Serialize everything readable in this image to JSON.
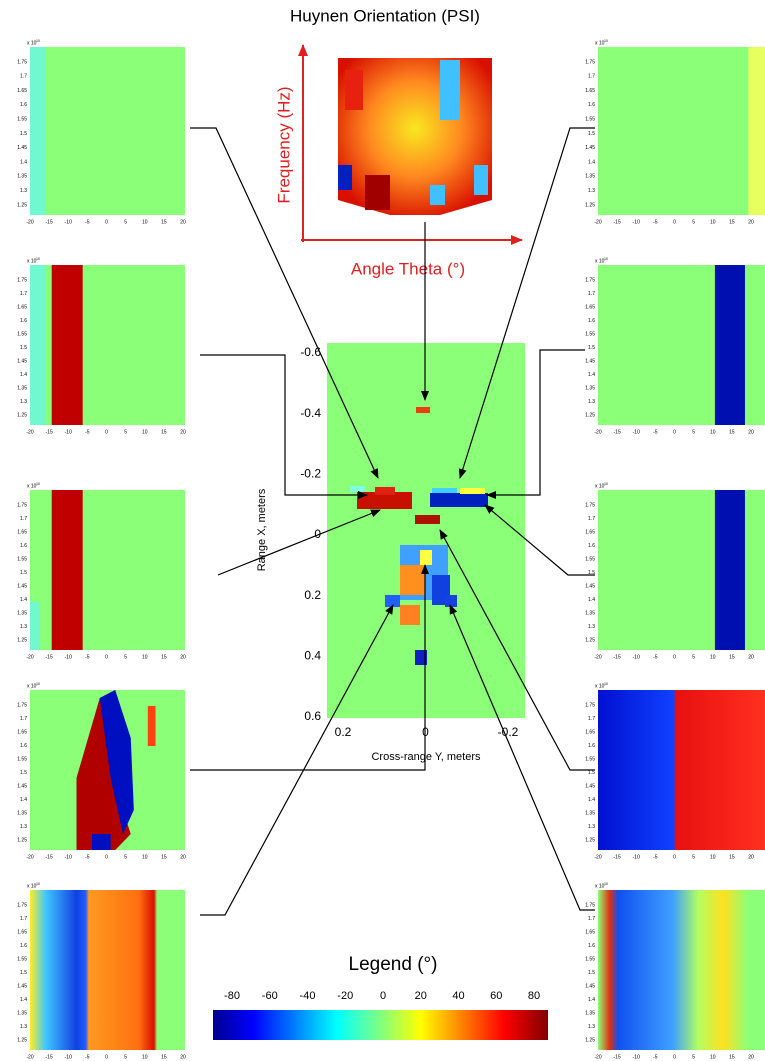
{
  "title": "Huynen Orientation (PSI)",
  "inset": {
    "y_label": "Frequency (Hz)",
    "x_label": "Angle Theta (°)"
  },
  "panel_axes": {
    "multiplier": "x 10",
    "exponent": "10",
    "yticks": [
      1.75,
      1.7,
      1.65,
      1.6,
      1.55,
      1.5,
      1.45,
      1.4,
      1.35,
      1.3,
      1.25
    ],
    "xticks": [
      -20,
      -15,
      -10,
      -5,
      0,
      5,
      10,
      15,
      20
    ]
  },
  "image": {
    "y_label": "Range X, meters",
    "x_label": "Cross-range Y, meters",
    "yticks": [
      -0.6,
      -0.4,
      -0.2,
      0,
      0.2,
      0.4,
      0.6
    ],
    "xticks": [
      0.2,
      0,
      -0.2
    ]
  },
  "legend": {
    "title": "Legend (°)",
    "ticks": [
      -80,
      -60,
      -40,
      -20,
      0,
      20,
      40,
      60,
      80
    ]
  }
}
